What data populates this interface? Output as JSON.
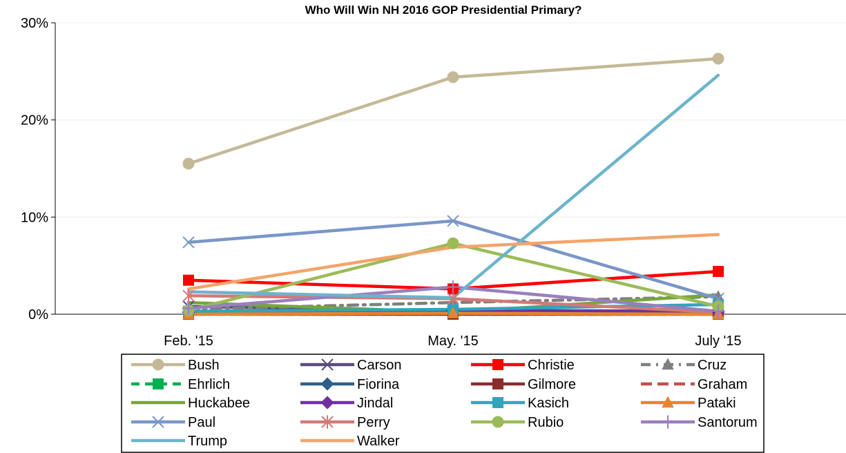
{
  "chart_data": {
    "type": "line",
    "title": "Who Will Win NH 2016 GOP Presidential Primary?",
    "xlabel": "",
    "ylabel": "",
    "categories": [
      "Feb. '15",
      "May. '15",
      "July '15"
    ],
    "ylim": [
      0,
      30
    ],
    "yticks": [
      0,
      10,
      20,
      30
    ],
    "ytick_labels": [
      "0%",
      "10%",
      "20%",
      "30%"
    ],
    "grid": true,
    "legend_position": "bottom",
    "series": [
      {
        "name": "Bush",
        "values": [
          15.5,
          24.4,
          26.3
        ],
        "color": "#c4b997",
        "marker": "circle",
        "dash": "solid"
      },
      {
        "name": "Carson",
        "values": [
          0.8,
          0.3,
          0.3
        ],
        "color": "#5b4a7c",
        "marker": "x",
        "dash": "solid"
      },
      {
        "name": "Christie",
        "values": [
          3.5,
          2.6,
          4.4
        ],
        "color": "#ff0000",
        "marker": "square",
        "dash": "solid"
      },
      {
        "name": "Cruz",
        "values": [
          0.5,
          1.2,
          1.8
        ],
        "color": "#7f7f7f",
        "marker": "triangle",
        "dash": "dashdot"
      },
      {
        "name": "Ehrlich",
        "values": [
          0.0,
          0.0,
          0.0
        ],
        "color": "#00b050",
        "marker": "square",
        "dash": "dash"
      },
      {
        "name": "Fiorina",
        "values": [
          0.2,
          0.4,
          0.3
        ],
        "color": "#2e5f8a",
        "marker": "diamond",
        "dash": "solid"
      },
      {
        "name": "Gilmore",
        "values": [
          0.0,
          0.0,
          0.0
        ],
        "color": "#8b2d2d",
        "marker": "square",
        "dash": "solid"
      },
      {
        "name": "Graham",
        "values": [
          0.1,
          0.2,
          0.1
        ],
        "color": "#c0504d",
        "marker": "none",
        "dash": "longdash"
      },
      {
        "name": "Huckabee",
        "values": [
          1.2,
          0.2,
          2.0
        ],
        "color": "#77a63a",
        "marker": "none",
        "dash": "solid"
      },
      {
        "name": "Jindal",
        "values": [
          0.2,
          0.4,
          0.2
        ],
        "color": "#7030a0",
        "marker": "diamond",
        "dash": "solid"
      },
      {
        "name": "Kasich",
        "values": [
          0.3,
          0.5,
          1.0
        ],
        "color": "#31a4bd",
        "marker": "square",
        "dash": "solid"
      },
      {
        "name": "Pataki",
        "values": [
          0.0,
          0.1,
          0.0
        ],
        "color": "#e8852c",
        "marker": "triangle",
        "dash": "solid"
      },
      {
        "name": "Paul",
        "values": [
          7.4,
          9.6,
          1.6
        ],
        "color": "#7996c8",
        "marker": "x",
        "dash": "solid"
      },
      {
        "name": "Perry",
        "values": [
          1.9,
          1.6,
          0.2
        ],
        "color": "#d37a76",
        "marker": "star",
        "dash": "solid"
      },
      {
        "name": "Rubio",
        "values": [
          0.4,
          7.3,
          0.8
        ],
        "color": "#9bbb59",
        "marker": "circle",
        "dash": "solid"
      },
      {
        "name": "Santorum",
        "values": [
          0.6,
          2.8,
          0.3
        ],
        "color": "#9a7fbd",
        "marker": "plus",
        "dash": "solid"
      },
      {
        "name": "Trump",
        "values": [
          2.3,
          1.7,
          24.6
        ],
        "color": "#6cb4cc",
        "marker": "none",
        "dash": "solid"
      },
      {
        "name": "Walker",
        "values": [
          2.6,
          6.9,
          8.2
        ],
        "color": "#f4a46a",
        "marker": "none",
        "dash": "solid"
      }
    ]
  }
}
